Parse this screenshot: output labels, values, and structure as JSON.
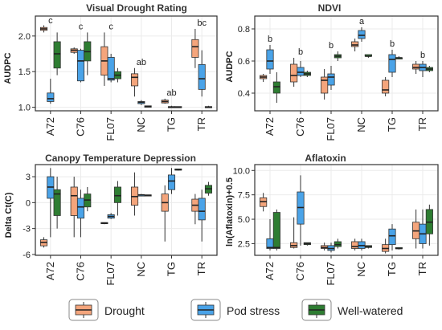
{
  "colors": {
    "Drought": "#f4a57c",
    "Pod stress": "#4aa3e8",
    "Well-watered": "#2e7d32",
    "median": "#222222",
    "grid": "#ebebeb",
    "frame": "#333333"
  },
  "legend": {
    "items": [
      "Drought",
      "Pod stress",
      "Well-watered"
    ]
  },
  "chart_data": [
    {
      "type": "box",
      "title": "Visual Drought Rating",
      "xlabel": "",
      "ylabel": "AUDPC",
      "ylim": [
        0.95,
        2.28
      ],
      "yticks": [
        1.0,
        1.5,
        2.0
      ],
      "ytick_labels": [
        "1.0",
        "1.5",
        "2.0"
      ],
      "categories": [
        "A72",
        "C76",
        "FL07",
        "NC",
        "TG",
        "TR"
      ],
      "letters": [
        "c",
        "c",
        "c",
        "ab",
        "ab",
        "bc"
      ],
      "series": [
        {
          "name": "Drought",
          "boxes": [
            [
              2.05,
              2.08,
              2.1,
              2.12,
              2.15
            ],
            [
              1.75,
              1.77,
              1.8,
              1.82,
              1.84
            ],
            [
              1.3,
              1.45,
              1.65,
              1.85,
              2.05
            ],
            [
              1.15,
              1.3,
              1.42,
              1.47,
              1.55
            ],
            [
              1.05,
              1.06,
              1.08,
              1.1,
              1.12
            ],
            [
              1.55,
              1.7,
              1.85,
              1.95,
              2.1
            ]
          ]
        },
        {
          "name": "Pod stress",
          "boxes": [
            [
              1.05,
              1.08,
              1.12,
              1.2,
              1.4
            ],
            [
              1.35,
              1.37,
              1.65,
              1.8,
              1.82
            ],
            [
              1.35,
              1.38,
              1.4,
              1.7,
              1.75
            ],
            [
              1.03,
              1.05,
              1.07,
              1.08,
              1.1
            ],
            [
              1.0,
              1.0,
              1.0,
              1.01,
              1.02
            ],
            [
              1.15,
              1.25,
              1.4,
              1.6,
              1.8
            ]
          ]
        },
        {
          "name": "Well-watered",
          "boxes": [
            [
              1.45,
              1.55,
              1.75,
              1.92,
              2.05
            ],
            [
              1.45,
              1.65,
              1.78,
              1.92,
              2.05
            ],
            [
              1.35,
              1.4,
              1.45,
              1.5,
              1.55
            ],
            [
              1.0,
              1.0,
              1.01,
              1.02,
              1.02
            ],
            [
              1.0,
              1.0,
              1.0,
              1.01,
              1.01
            ],
            [
              1.0,
              1.0,
              1.0,
              1.01,
              1.02
            ]
          ]
        }
      ]
    },
    {
      "type": "box",
      "title": "NDVI",
      "xlabel": "",
      "ylabel": "AUDPC",
      "ylim": [
        0.29,
        0.88
      ],
      "yticks": [
        0.4,
        0.6,
        0.8
      ],
      "ytick_labels": [
        "0.4",
        "0.6",
        "0.8"
      ],
      "categories": [
        "A72",
        "C76",
        "FL07",
        "NC",
        "TG",
        "TR"
      ],
      "letters": [
        "b",
        "b",
        "b",
        "a",
        "b",
        "b"
      ],
      "series": [
        {
          "name": "Drought",
          "boxes": [
            [
              0.47,
              0.49,
              0.5,
              0.51,
              0.52
            ],
            [
              0.44,
              0.47,
              0.51,
              0.58,
              0.62
            ],
            [
              0.36,
              0.4,
              0.48,
              0.5,
              0.55
            ],
            [
              0.66,
              0.69,
              0.7,
              0.72,
              0.74
            ],
            [
              0.38,
              0.4,
              0.42,
              0.48,
              0.5
            ],
            [
              0.52,
              0.55,
              0.56,
              0.58,
              0.6
            ]
          ]
        },
        {
          "name": "Pod stress",
          "boxes": [
            [
              0.52,
              0.55,
              0.6,
              0.67,
              0.7
            ],
            [
              0.5,
              0.51,
              0.53,
              0.56,
              0.6
            ],
            [
              0.42,
              0.45,
              0.5,
              0.52,
              0.57
            ],
            [
              0.72,
              0.74,
              0.76,
              0.79,
              0.81
            ],
            [
              0.5,
              0.53,
              0.61,
              0.64,
              0.67
            ],
            [
              0.5,
              0.54,
              0.56,
              0.58,
              0.6
            ]
          ]
        },
        {
          "name": "Well-watered",
          "boxes": [
            [
              0.34,
              0.4,
              0.44,
              0.47,
              0.53
            ],
            [
              0.5,
              0.51,
              0.52,
              0.53,
              0.54
            ],
            [
              0.6,
              0.62,
              0.63,
              0.64,
              0.66
            ],
            [
              0.62,
              0.63,
              0.63,
              0.64,
              0.64
            ],
            [
              0.61,
              0.62,
              0.62,
              0.62,
              0.63
            ],
            [
              0.53,
              0.54,
              0.55,
              0.56,
              0.57
            ]
          ]
        }
      ]
    },
    {
      "type": "box",
      "title": "Canopy Temperature Depression",
      "xlabel": "",
      "ylabel": "Delta Ct(C)",
      "ylim": [
        -6.1,
        4.4
      ],
      "yticks": [
        -6,
        -3,
        0,
        3
      ],
      "ytick_labels": [
        "-6",
        "-3",
        "0",
        "3"
      ],
      "categories": [
        "A72",
        "C76",
        "FL07",
        "NC",
        "TG",
        "TR"
      ],
      "letters": [],
      "series": [
        {
          "name": "Drought",
          "boxes": [
            [
              -5.2,
              -5.0,
              -4.6,
              -4.3,
              -4.0
            ],
            [
              -4.0,
              -1.5,
              0.8,
              1.8,
              3.0
            ],
            [
              -2.5,
              -2.4,
              -2.4,
              -2.3,
              -2.3
            ],
            [
              -1.5,
              -0.3,
              0.7,
              1.8,
              3.5
            ],
            [
              -4.5,
              -1.0,
              0.0,
              1.0,
              2.0
            ],
            [
              -2.5,
              -1.0,
              -0.3,
              0.4,
              1.0
            ]
          ]
        },
        {
          "name": "Pod stress",
          "boxes": [
            [
              -4.0,
              0.5,
              1.8,
              3.0,
              4.0
            ],
            [
              -4.0,
              -1.8,
              -0.5,
              0.5,
              1.5
            ],
            [
              -1.9,
              -1.8,
              -1.6,
              -1.4,
              -1.2
            ],
            [
              0.8,
              0.8,
              0.9,
              0.9,
              1.0
            ],
            [
              1.0,
              1.5,
              2.5,
              3.2,
              4.0
            ],
            [
              -4.5,
              -2.0,
              -1.0,
              0.5,
              1.5
            ]
          ]
        },
        {
          "name": "Well-watered",
          "boxes": [
            [
              -3.0,
              -1.5,
              1.0,
              1.5,
              3.0
            ],
            [
              -1.0,
              -0.5,
              0.3,
              1.0,
              1.8
            ],
            [
              -1.5,
              0.0,
              0.8,
              1.8,
              2.5
            ],
            [
              0.8,
              0.8,
              0.85,
              0.9,
              0.9
            ],
            [
              3.7,
              3.8,
              3.8,
              3.9,
              3.9
            ],
            [
              0.8,
              1.1,
              1.6,
              2.0,
              2.4
            ]
          ]
        }
      ]
    },
    {
      "type": "box",
      "title": "Aflatoxin",
      "xlabel": "",
      "ylabel": "ln(Aflatoxin)+0.5",
      "ylim": [
        1.3,
        10.6
      ],
      "yticks": [
        2.5,
        5.0,
        7.5,
        10.0
      ],
      "ytick_labels": [
        "2.5",
        "5.0",
        "7.5",
        "10.0"
      ],
      "categories": [
        "A72",
        "C76",
        "FL07",
        "NC",
        "TG",
        "TR"
      ],
      "letters": [],
      "series": [
        {
          "name": "Drought",
          "boxes": [
            [
              5.8,
              6.3,
              6.8,
              7.2,
              7.7
            ],
            [
              2.0,
              2.1,
              2.3,
              2.6,
              5.2
            ],
            [
              1.8,
              2.0,
              2.1,
              2.3,
              2.6
            ],
            [
              1.8,
              2.0,
              2.2,
              2.7,
              3.0
            ],
            [
              1.5,
              1.7,
              2.0,
              2.4,
              3.0
            ],
            [
              2.0,
              3.0,
              3.8,
              4.7,
              6.0
            ]
          ]
        },
        {
          "name": "Pod stress",
          "boxes": [
            [
              1.8,
              2.0,
              2.1,
              3.0,
              5.0
            ],
            [
              2.3,
              4.5,
              6.2,
              7.8,
              9.5
            ],
            [
              1.6,
              1.8,
              2.0,
              2.3,
              2.6
            ],
            [
              1.8,
              2.0,
              2.3,
              2.7,
              3.0
            ],
            [
              1.8,
              2.4,
              3.3,
              4.0,
              4.5
            ],
            [
              2.0,
              2.5,
              3.5,
              4.5,
              6.0
            ]
          ]
        },
        {
          "name": "Well-watered",
          "boxes": [
            [
              1.8,
              2.0,
              2.1,
              5.7,
              6.0
            ],
            [
              2.3,
              2.4,
              2.5,
              2.6,
              2.6
            ],
            [
              2.0,
              2.2,
              2.4,
              2.7,
              3.0
            ],
            [
              2.0,
              2.1,
              2.2,
              2.3,
              2.3
            ],
            [
              1.9,
              2.0,
              2.0,
              2.1,
              2.1
            ],
            [
              2.3,
              3.5,
              4.7,
              6.0,
              6.5
            ]
          ]
        }
      ]
    }
  ]
}
